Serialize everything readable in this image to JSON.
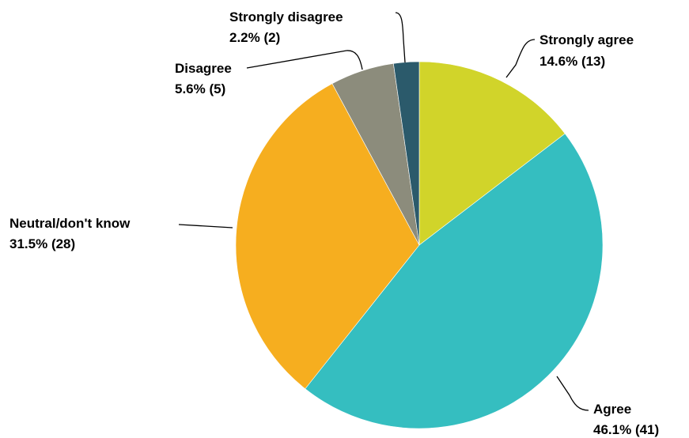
{
  "chart_data": {
    "type": "pie",
    "title": "",
    "legend": "none",
    "slices": [
      {
        "label": "Strongly agree",
        "percent": "14.6%",
        "count": "(13)",
        "value": 13,
        "color": "#d1d42a"
      },
      {
        "label": "Agree",
        "percent": "46.1%",
        "count": "(41)",
        "value": 41,
        "color": "#35bec0"
      },
      {
        "label": "Neutral/don't know",
        "percent": "31.5%",
        "count": "(28)",
        "value": 28,
        "color": "#f6ae1f"
      },
      {
        "label": "Disagree",
        "percent": "5.6%",
        "count": "(5)",
        "value": 5,
        "color": "#8c8c7c"
      },
      {
        "label": "Strongly disagree",
        "percent": "2.2%",
        "count": "(2)",
        "value": 2,
        "color": "#2b5a6b"
      }
    ]
  }
}
